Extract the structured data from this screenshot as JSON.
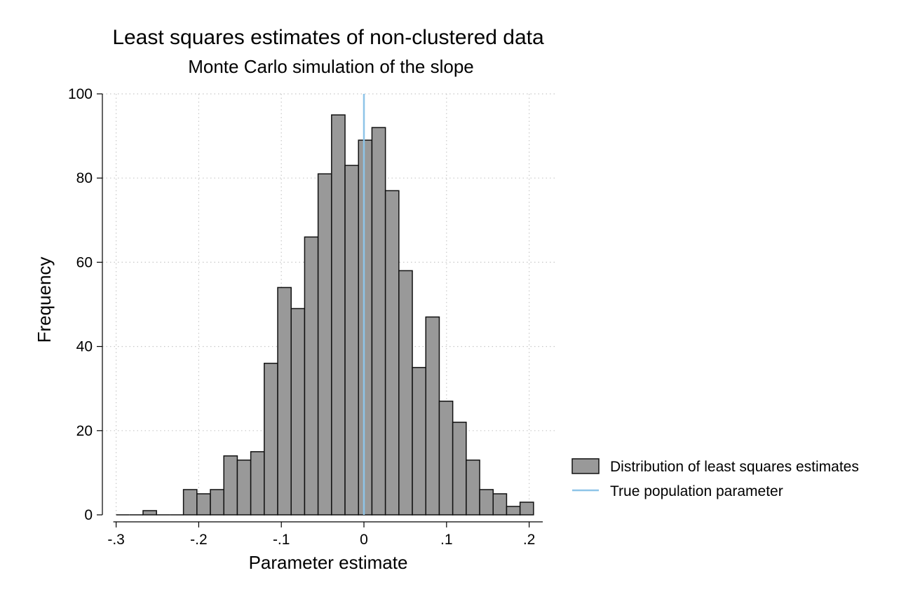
{
  "chart_data": {
    "type": "bar",
    "title": "Least squares estimates of non-clustered data",
    "subtitle": "Monte Carlo simulation of the slope",
    "xlabel": "Parameter estimate",
    "ylabel": "Frequency",
    "xlim": [
      -0.3,
      0.22
    ],
    "ylim": [
      0,
      100
    ],
    "xticks": [
      -0.3,
      -0.2,
      -0.1,
      0,
      0.1,
      0.2
    ],
    "xtick_labels": [
      "-.3",
      "-.2",
      "-.1",
      "0",
      ".1",
      ".2"
    ],
    "yticks": [
      0,
      20,
      40,
      60,
      80,
      100
    ],
    "ytick_labels": [
      "0",
      "20",
      "40",
      "60",
      "80",
      "100"
    ],
    "grid": true,
    "bin_width": 0.0163,
    "bins_start": -0.3,
    "bins": [
      {
        "x0": -0.3,
        "count": 0
      },
      {
        "x0": -0.2837,
        "count": 0
      },
      {
        "x0": -0.2674,
        "count": 1
      },
      {
        "x0": -0.2511,
        "count": 0
      },
      {
        "x0": -0.2348,
        "count": 0
      },
      {
        "x0": -0.2185,
        "count": 6
      },
      {
        "x0": -0.2022,
        "count": 5
      },
      {
        "x0": -0.1859,
        "count": 6
      },
      {
        "x0": -0.1696,
        "count": 14
      },
      {
        "x0": -0.1533,
        "count": 13
      },
      {
        "x0": -0.137,
        "count": 15
      },
      {
        "x0": -0.1207,
        "count": 36
      },
      {
        "x0": -0.1044,
        "count": 54
      },
      {
        "x0": -0.0881,
        "count": 49
      },
      {
        "x0": -0.0718,
        "count": 66
      },
      {
        "x0": -0.0555,
        "count": 81
      },
      {
        "x0": -0.0392,
        "count": 95
      },
      {
        "x0": -0.0229,
        "count": 83
      },
      {
        "x0": -0.0066,
        "count": 89
      },
      {
        "x0": 0.0097,
        "count": 92
      },
      {
        "x0": 0.026,
        "count": 77
      },
      {
        "x0": 0.0423,
        "count": 58
      },
      {
        "x0": 0.0586,
        "count": 35
      },
      {
        "x0": 0.0749,
        "count": 47
      },
      {
        "x0": 0.0912,
        "count": 27
      },
      {
        "x0": 0.1075,
        "count": 22
      },
      {
        "x0": 0.1238,
        "count": 13
      },
      {
        "x0": 0.1401,
        "count": 6
      },
      {
        "x0": 0.1564,
        "count": 5
      },
      {
        "x0": 0.1727,
        "count": 2
      },
      {
        "x0": 0.189,
        "count": 3
      }
    ],
    "reference_line": {
      "x": 0.0,
      "name": "True population parameter",
      "color": "#8ec4e8"
    },
    "series": [
      {
        "name": "Distribution of least squares estimates",
        "color": "#999999",
        "edge": "#111111"
      }
    ],
    "legend_placement": "right"
  }
}
